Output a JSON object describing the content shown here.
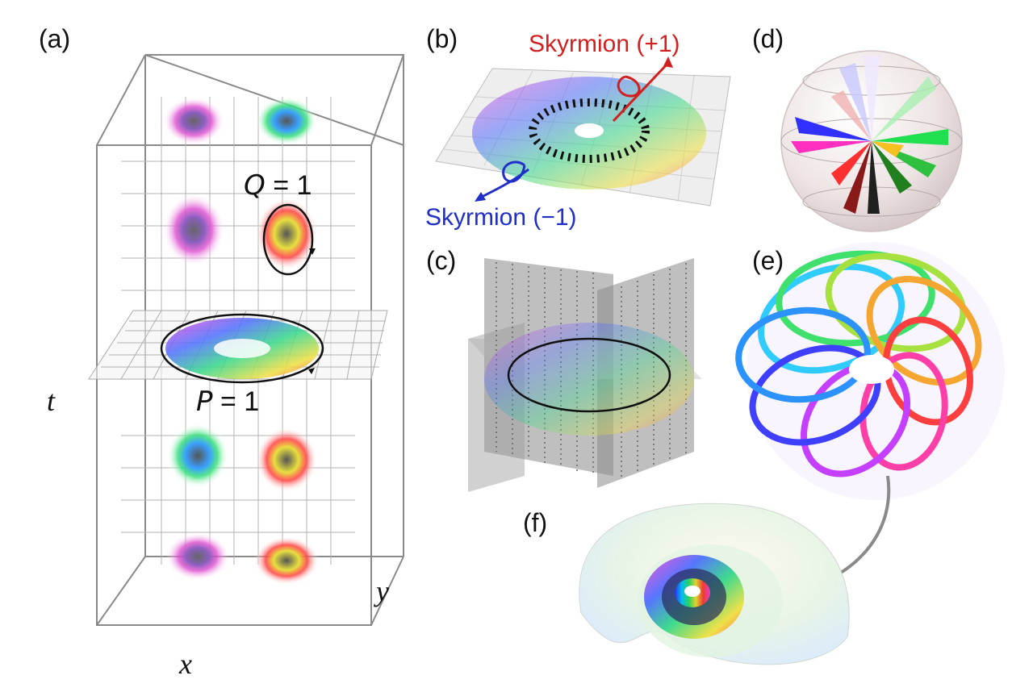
{
  "labels": {
    "a": "(a)",
    "b": "(b)",
    "c": "(c)",
    "d": "(d)",
    "e": "(e)",
    "f": "(f)"
  },
  "axes": {
    "t": "t",
    "x": "x",
    "y": "y"
  },
  "annotations": {
    "q_var": "Q",
    "q_rest": " = 1",
    "p_var": "P",
    "p_rest": " = 1",
    "skyrmion_plus": "Skyrmion (+1)",
    "skyrmion_minus": "Skyrmion (−1)"
  },
  "colors": {
    "skyrmion_plus": "#d21f1f",
    "skyrmion_minus": "#1f2fc8",
    "grid": "#9a9a9a",
    "box": "#7a7a7a"
  }
}
